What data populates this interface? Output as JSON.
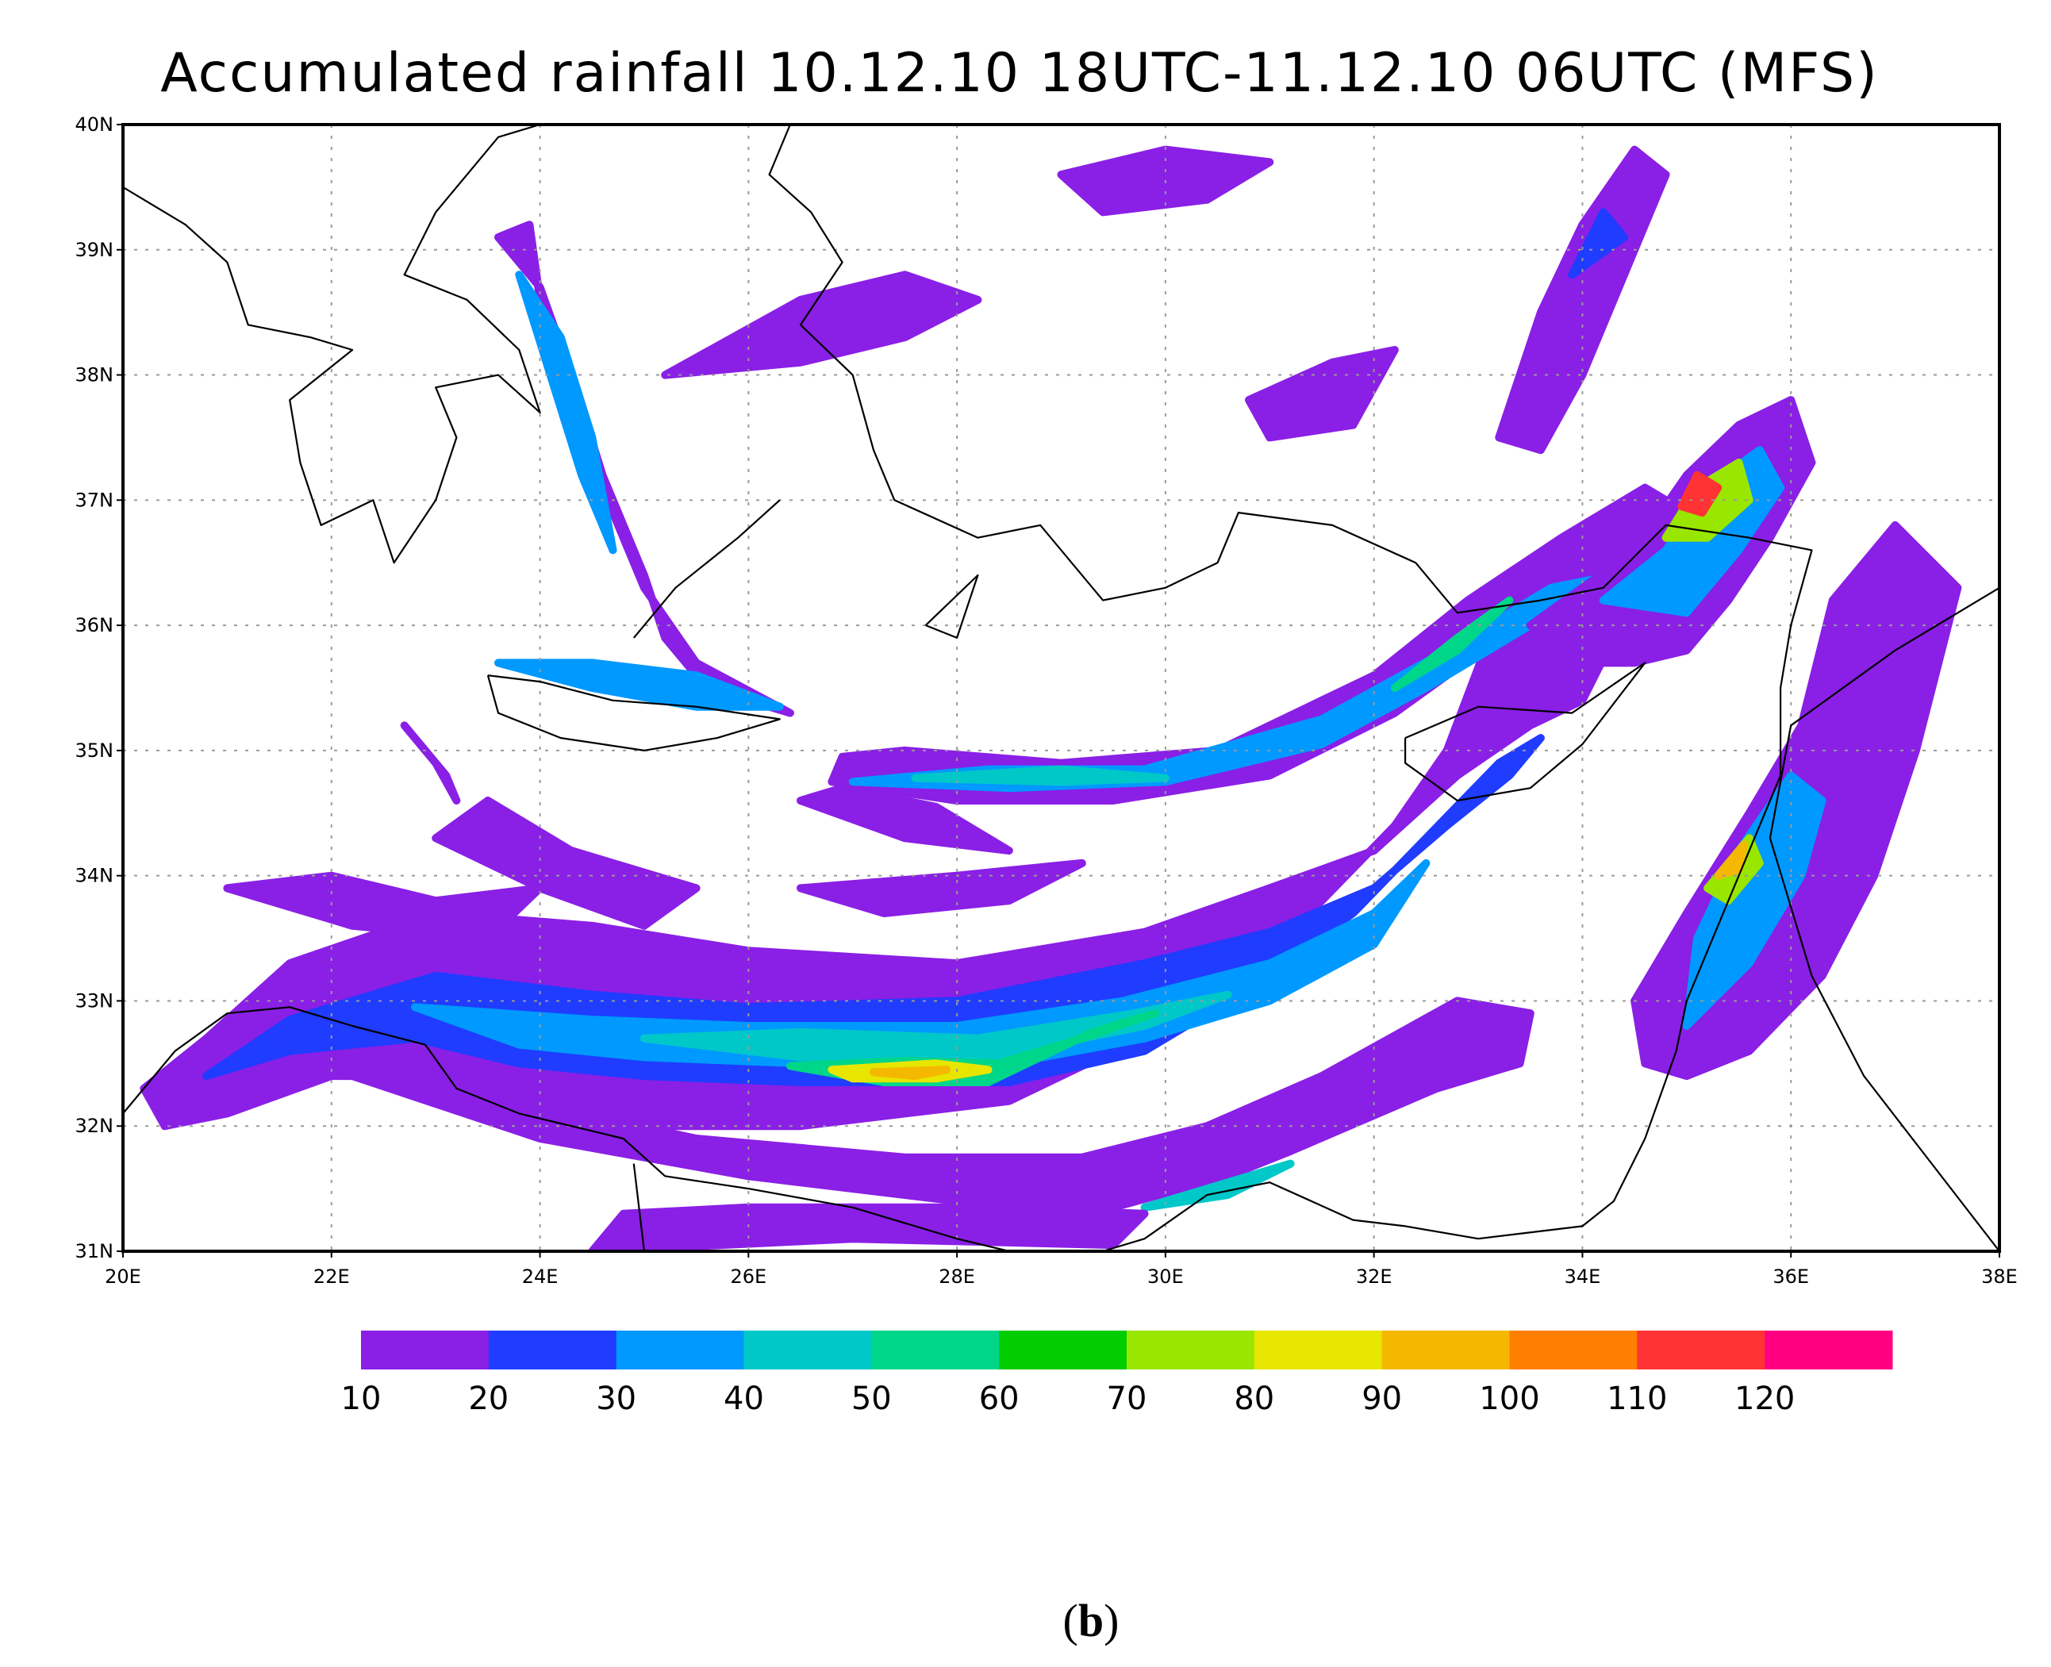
{
  "title": "Accumulated rainfall 10.12.10 18UTC-11.12.10 06UTC (MFS)",
  "panel_label": "b",
  "map": {
    "lon_range": [
      20,
      38
    ],
    "lat_range": [
      31,
      40
    ],
    "lon_ticks": [
      "20E",
      "22E",
      "24E",
      "26E",
      "28E",
      "30E",
      "32E",
      "34E",
      "36E",
      "38E"
    ],
    "lat_ticks": [
      "31N",
      "32N",
      "33N",
      "34N",
      "35N",
      "36N",
      "37N",
      "38N",
      "39N",
      "40N"
    ],
    "grid": "dotted"
  },
  "colorbar": {
    "labels": [
      "10",
      "20",
      "30",
      "40",
      "50",
      "60",
      "70",
      "80",
      "90",
      "100",
      "110",
      "120"
    ],
    "colors": [
      "#8a1fe6",
      "#1f3cff",
      "#0099ff",
      "#00c8c8",
      "#00d68a",
      "#00cc00",
      "#99e600",
      "#e6e600",
      "#f5b800",
      "#ff8000",
      "#ff3333",
      "#ff0080"
    ]
  }
}
